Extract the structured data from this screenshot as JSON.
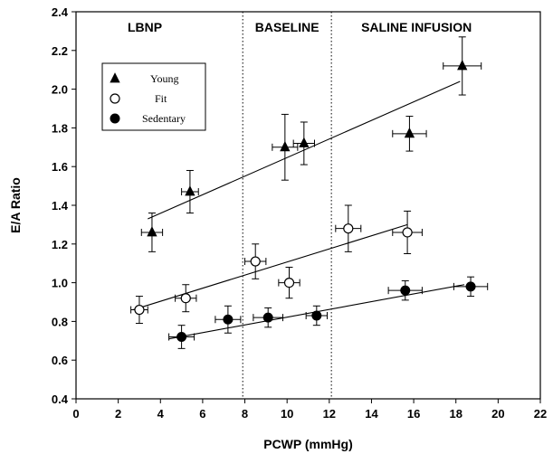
{
  "chart_data": {
    "type": "scatter",
    "xlabel": "PCWP (mmHg)",
    "ylabel": "E/A Ratio",
    "xlim": [
      0,
      22
    ],
    "ylim": [
      0.4,
      2.4
    ],
    "xticks": [
      "0",
      "2",
      "4",
      "6",
      "8",
      "10",
      "12",
      "14",
      "16",
      "18",
      "20",
      "22"
    ],
    "yticks": [
      "0.4",
      "0.6",
      "0.8",
      "1.0",
      "1.2",
      "1.4",
      "1.6",
      "1.8",
      "2.0",
      "2.2",
      "2.4"
    ],
    "grid": false,
    "legend_position": "top-left",
    "regions": [
      {
        "label": "LBNP",
        "x_start": 0,
        "x_end": 7.9
      },
      {
        "label": "BASELINE",
        "x_start": 7.9,
        "x_end": 12.1
      },
      {
        "label": "SALINE INFUSION",
        "x_start": 12.1,
        "x_end": 22
      }
    ],
    "dividers": [
      7.9,
      12.1
    ],
    "series": [
      {
        "name": "Young",
        "marker": "filled-triangle",
        "points": [
          {
            "x": 3.6,
            "y": 1.26,
            "xerr": 0.5,
            "yerr": 0.1
          },
          {
            "x": 5.4,
            "y": 1.47,
            "xerr": 0.4,
            "yerr": 0.11
          },
          {
            "x": 9.9,
            "y": 1.7,
            "xerr": 0.6,
            "yerr": 0.17
          },
          {
            "x": 10.8,
            "y": 1.72,
            "xerr": 0.5,
            "yerr": 0.11
          },
          {
            "x": 15.8,
            "y": 1.77,
            "xerr": 0.8,
            "yerr": 0.09
          },
          {
            "x": 18.3,
            "y": 2.12,
            "xerr": 0.9,
            "yerr": 0.15
          }
        ],
        "fit": [
          [
            3.4,
            1.33
          ],
          [
            18.2,
            2.04
          ]
        ]
      },
      {
        "name": "Fit",
        "marker": "open-circle",
        "points": [
          {
            "x": 3.0,
            "y": 0.86,
            "xerr": 0.4,
            "yerr": 0.07
          },
          {
            "x": 5.2,
            "y": 0.92,
            "xerr": 0.5,
            "yerr": 0.07
          },
          {
            "x": 8.5,
            "y": 1.11,
            "xerr": 0.5,
            "yerr": 0.09
          },
          {
            "x": 10.1,
            "y": 1.0,
            "xerr": 0.5,
            "yerr": 0.08
          },
          {
            "x": 12.9,
            "y": 1.28,
            "xerr": 0.6,
            "yerr": 0.12
          },
          {
            "x": 15.7,
            "y": 1.26,
            "xerr": 0.7,
            "yerr": 0.11
          }
        ],
        "fit": [
          [
            2.7,
            0.86
          ],
          [
            15.7,
            1.3
          ]
        ]
      },
      {
        "name": "Sedentary",
        "marker": "filled-circle",
        "points": [
          {
            "x": 5.0,
            "y": 0.72,
            "xerr": 0.6,
            "yerr": 0.06
          },
          {
            "x": 7.2,
            "y": 0.81,
            "xerr": 0.6,
            "yerr": 0.07
          },
          {
            "x": 9.1,
            "y": 0.82,
            "xerr": 0.7,
            "yerr": 0.05
          },
          {
            "x": 11.4,
            "y": 0.83,
            "xerr": 0.5,
            "yerr": 0.05
          },
          {
            "x": 15.6,
            "y": 0.96,
            "xerr": 0.8,
            "yerr": 0.05
          },
          {
            "x": 18.7,
            "y": 0.98,
            "xerr": 0.8,
            "yerr": 0.05
          }
        ],
        "fit": [
          [
            4.4,
            0.71
          ],
          [
            18.4,
            0.99
          ]
        ]
      }
    ]
  }
}
